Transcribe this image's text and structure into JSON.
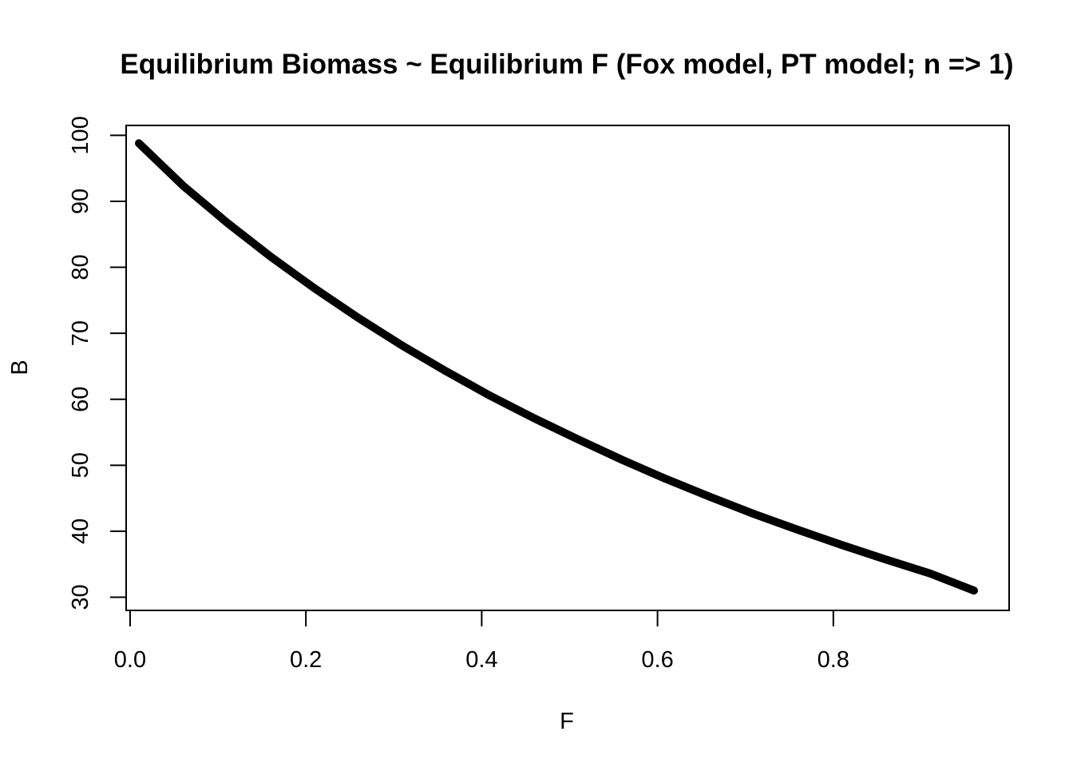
{
  "chart_data": {
    "type": "line",
    "title": "Equilibrium Biomass ~ Equilibrium F (Fox model, PT model; n => 1)",
    "xlabel": "F",
    "ylabel": "B",
    "xlim": [
      -0.0045,
      1.0
    ],
    "ylim": [
      28,
      101.5
    ],
    "x_ticks": [
      0.0,
      0.2,
      0.4,
      0.6,
      0.8
    ],
    "x_tick_labels": [
      "0.0",
      "0.2",
      "0.4",
      "0.6",
      "0.8"
    ],
    "y_ticks": [
      30,
      40,
      50,
      60,
      70,
      80,
      90,
      100
    ],
    "y_tick_labels": [
      "30",
      "40",
      "50",
      "60",
      "70",
      "80",
      "90",
      "100"
    ],
    "grid": false,
    "line_color": "#000000",
    "series": [
      {
        "x": [
          0.01,
          0.06,
          0.11,
          0.16,
          0.21,
          0.26,
          0.31,
          0.36,
          0.41,
          0.46,
          0.51,
          0.56,
          0.61,
          0.66,
          0.71,
          0.76,
          0.81,
          0.86,
          0.91,
          0.96
        ],
        "values": [
          98.8,
          92.4,
          86.8,
          81.6,
          76.8,
          72.3,
          68.1,
          64.2,
          60.5,
          57.1,
          53.9,
          50.8,
          47.9,
          45.2,
          42.6,
          40.2,
          37.9,
          35.7,
          33.6,
          31.0
        ]
      }
    ]
  }
}
